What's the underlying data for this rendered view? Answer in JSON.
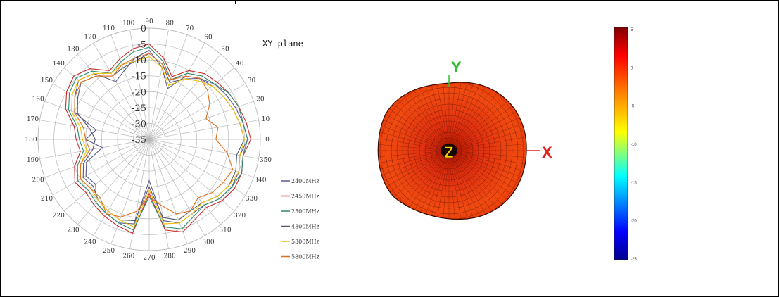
{
  "polar_chart": {
    "title": "XY plane",
    "colors": {
      "2400MHz": "#5b5a8c",
      "2450MHz": "#c92a2a",
      "2500MHz": "#2e8b6c",
      "4800MHz": "#545878",
      "5300MHz": "#f0c000",
      "5800MHz": "#e07020"
    }
  },
  "radiation_3d": {
    "axis_labels": {
      "x": "X",
      "y": "Y",
      "z": "Z"
    },
    "colors": {
      "x": "#e02020",
      "y": "#30c030",
      "z": "#ffd200"
    }
  },
  "colorbar": {
    "tick_labels": [
      "5",
      "0",
      "-5",
      "-10",
      "-15",
      "-20",
      "-25"
    ]
  },
  "chart_data": [
    {
      "type": "polar",
      "title": "XY plane",
      "angle_ticks": [
        "90",
        "80",
        "70",
        "60",
        "50",
        "40",
        "30",
        "20",
        "10",
        "0",
        "350",
        "340",
        "330",
        "320",
        "310",
        "300",
        "290",
        "280",
        "270",
        "260",
        "250",
        "240",
        "230",
        "220",
        "210",
        "200",
        "190",
        "180",
        "170",
        "160",
        "150",
        "140",
        "130",
        "120",
        "110",
        "100"
      ],
      "radial_ticks": [
        "0",
        "-5",
        "-10",
        "-15",
        "-20",
        "-25",
        "-30",
        "-35"
      ],
      "rlim": [
        -35,
        0
      ],
      "theta": [
        0,
        10,
        20,
        30,
        40,
        50,
        60,
        70,
        80,
        90,
        100,
        110,
        120,
        130,
        140,
        150,
        160,
        170,
        180,
        190,
        200,
        210,
        220,
        230,
        240,
        250,
        260,
        270,
        280,
        290,
        300,
        310,
        320,
        330,
        340,
        350
      ],
      "series": [
        {
          "name": "2400MHz",
          "values": [
            -4,
            -5,
            -6,
            -7,
            -8,
            -10,
            -12,
            -18,
            -12,
            -7,
            -9,
            -12,
            -14,
            -8,
            -6,
            -8,
            -10,
            -18,
            -15,
            -20,
            -14,
            -12,
            -13,
            -9,
            -8,
            -7,
            -8,
            -22,
            -9,
            -7,
            -8,
            -8,
            -6,
            -5,
            -5,
            -6
          ]
        },
        {
          "name": "2450MHz",
          "values": [
            -3,
            -4,
            -5,
            -6,
            -7,
            -8,
            -10,
            -14,
            -9,
            -5,
            -6,
            -8,
            -10,
            -6,
            -4,
            -5,
            -7,
            -11,
            -12,
            -13,
            -10,
            -8,
            -9,
            -8,
            -7,
            -6,
            -5,
            -18,
            -6,
            -4,
            -6,
            -7,
            -5,
            -4,
            -4,
            -5
          ]
        },
        {
          "name": "2500MHz",
          "values": [
            -4,
            -5,
            -5,
            -6,
            -8,
            -9,
            -11,
            -15,
            -10,
            -6,
            -7,
            -9,
            -11,
            -7,
            -5,
            -6,
            -8,
            -12,
            -13,
            -14,
            -11,
            -9,
            -10,
            -9,
            -8,
            -7,
            -6,
            -17,
            -7,
            -5,
            -7,
            -8,
            -6,
            -5,
            -4,
            -5
          ]
        },
        {
          "name": "4800MHz",
          "values": [
            -5,
            -6,
            -7,
            -8,
            -9,
            -10,
            -13,
            -16,
            -11,
            -8,
            -10,
            -11,
            -12,
            -9,
            -7,
            -9,
            -11,
            -16,
            -18,
            -17,
            -13,
            -11,
            -12,
            -10,
            -9,
            -8,
            -9,
            -20,
            -10,
            -8,
            -9,
            -9,
            -7,
            -6,
            -6,
            -7
          ]
        },
        {
          "name": "5300MHz",
          "values": [
            -5,
            -6,
            -7,
            -8,
            -9,
            -11,
            -13,
            -17,
            -12,
            -9,
            -10,
            -10,
            -11,
            -8,
            -6,
            -7,
            -9,
            -13,
            -14,
            -15,
            -12,
            -10,
            -11,
            -10,
            -9,
            -8,
            -7,
            -19,
            -8,
            -7,
            -8,
            -9,
            -7,
            -6,
            -5,
            -6
          ]
        },
        {
          "name": "5800MHz",
          "values": [
            -14,
            -13,
            -16,
            -13,
            -11,
            -10,
            -12,
            -15,
            -11,
            -8,
            -9,
            -10,
            -12,
            -9,
            -7,
            -8,
            -10,
            -14,
            -15,
            -16,
            -12,
            -10,
            -11,
            -11,
            -8,
            -9,
            -12,
            -17,
            -14,
            -10,
            -9,
            -11,
            -9,
            -8,
            -7,
            -10
          ]
        }
      ],
      "legend_position": "bottom-right"
    }
  ]
}
